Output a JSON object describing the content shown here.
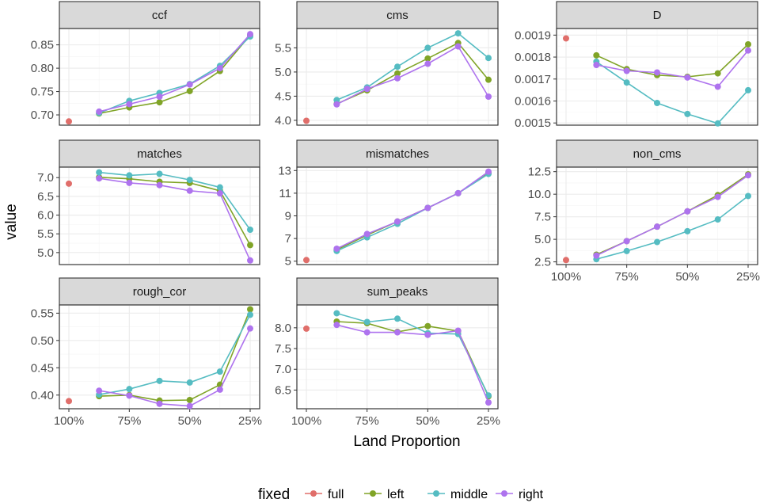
{
  "chart_data": {
    "type": "line",
    "xlabel": "Land Proportion",
    "ylabel": "value",
    "x_categories": [
      "100%",
      "87.5%",
      "75%",
      "62.5%",
      "50%",
      "37.5%",
      "25%"
    ],
    "x_tick_labels": [
      "100%",
      "75%",
      "50%",
      "25%"
    ],
    "legend": {
      "title": "fixed",
      "entries": [
        {
          "name": "full",
          "color": "#E06E6A"
        },
        {
          "name": "left",
          "color": "#80A427"
        },
        {
          "name": "middle",
          "color": "#55BCC2"
        },
        {
          "name": "right",
          "color": "#AE73EE"
        }
      ]
    },
    "panels": [
      {
        "title": "ccf",
        "ylim": [
          0.678,
          0.885
        ],
        "yticks": [
          0.7,
          0.75,
          0.8,
          0.85
        ],
        "ytick_labels": [
          "0.70",
          "0.75",
          "0.80",
          "0.85"
        ],
        "series": [
          {
            "name": "full",
            "values": [
              0.686,
              null,
              null,
              null,
              null,
              null,
              null
            ]
          },
          {
            "name": "left",
            "values": [
              null,
              0.703,
              0.716,
              0.727,
              0.751,
              0.794,
              0.871
            ]
          },
          {
            "name": "middle",
            "values": [
              null,
              0.704,
              0.73,
              0.747,
              0.766,
              0.805,
              0.868
            ]
          },
          {
            "name": "right",
            "values": [
              null,
              0.707,
              0.723,
              0.739,
              0.765,
              0.8,
              0.873
            ]
          }
        ]
      },
      {
        "title": "cms",
        "ylim": [
          3.9,
          5.9
        ],
        "yticks": [
          4.0,
          4.5,
          5.0,
          5.5
        ],
        "ytick_labels": [
          "4.0",
          "4.5",
          "5.0",
          "5.5"
        ],
        "series": [
          {
            "name": "full",
            "values": [
              3.99,
              null,
              null,
              null,
              null,
              null,
              null
            ]
          },
          {
            "name": "left",
            "values": [
              null,
              4.34,
              4.62,
              4.97,
              5.28,
              5.6,
              4.84
            ]
          },
          {
            "name": "middle",
            "values": [
              null,
              4.42,
              4.68,
              5.11,
              5.5,
              5.8,
              5.29
            ]
          },
          {
            "name": "right",
            "values": [
              null,
              4.33,
              4.65,
              4.87,
              5.17,
              5.53,
              4.49
            ]
          }
        ]
      },
      {
        "title": "D",
        "ylim": [
          0.00149,
          0.00193
        ],
        "yticks": [
          0.0015,
          0.0016,
          0.0017,
          0.0018,
          0.0019
        ],
        "ytick_labels": [
          "0.0015",
          "0.0016",
          "0.0017",
          "0.0018",
          "0.0019"
        ],
        "series": [
          {
            "name": "full",
            "values": [
              0.001885,
              null,
              null,
              null,
              null,
              null,
              null
            ]
          },
          {
            "name": "left",
            "values": [
              null,
              0.001808,
              0.001745,
              0.001718,
              0.00171,
              0.001726,
              0.001858
            ]
          },
          {
            "name": "middle",
            "values": [
              null,
              0.001779,
              0.001684,
              0.001591,
              0.001541,
              0.001498,
              0.001649
            ]
          },
          {
            "name": "right",
            "values": [
              null,
              0.001764,
              0.001737,
              0.00173,
              0.001707,
              0.001665,
              0.00183
            ]
          }
        ]
      },
      {
        "title": "matches",
        "ylim": [
          4.68,
          7.28
        ],
        "yticks": [
          5.0,
          5.5,
          6.0,
          6.5,
          7.0
        ],
        "ytick_labels": [
          "5.0",
          "5.5",
          "6.0",
          "6.5",
          "7.0"
        ],
        "series": [
          {
            "name": "full",
            "values": [
              6.84,
              null,
              null,
              null,
              null,
              null,
              null
            ]
          },
          {
            "name": "left",
            "values": [
              null,
              7.01,
              6.97,
              6.89,
              6.86,
              6.65,
              5.2
            ]
          },
          {
            "name": "middle",
            "values": [
              null,
              7.14,
              7.06,
              7.1,
              6.94,
              6.74,
              5.61
            ]
          },
          {
            "name": "right",
            "values": [
              null,
              6.98,
              6.86,
              6.8,
              6.65,
              6.58,
              4.79
            ]
          }
        ]
      },
      {
        "title": "mismatches",
        "ylim": [
          4.7,
          13.3
        ],
        "yticks": [
          5,
          7,
          9,
          11,
          13
        ],
        "ytick_labels": [
          "5",
          "7",
          "9",
          "11",
          "13"
        ],
        "series": [
          {
            "name": "full",
            "values": [
              5.1,
              null,
              null,
              null,
              null,
              null,
              null
            ]
          },
          {
            "name": "left",
            "values": [
              null,
              6.0,
              7.3,
              8.5,
              9.7,
              11.0,
              12.8
            ]
          },
          {
            "name": "middle",
            "values": [
              null,
              5.9,
              7.1,
              8.3,
              9.7,
              11.0,
              12.7
            ]
          },
          {
            "name": "right",
            "values": [
              null,
              6.1,
              7.4,
              8.5,
              9.7,
              11.0,
              12.9
            ]
          }
        ]
      },
      {
        "title": "non_cms",
        "ylim": [
          2.2,
          13.0
        ],
        "yticks": [
          2.5,
          5.0,
          7.5,
          10.0,
          12.5
        ],
        "ytick_labels": [
          "2.5",
          "5.0",
          "7.5",
          "10.0",
          "12.5"
        ],
        "series": [
          {
            "name": "full",
            "values": [
              2.7,
              null,
              null,
              null,
              null,
              null,
              null
            ]
          },
          {
            "name": "left",
            "values": [
              null,
              3.3,
              4.8,
              6.4,
              8.1,
              9.9,
              12.2
            ]
          },
          {
            "name": "middle",
            "values": [
              null,
              2.8,
              3.7,
              4.7,
              5.9,
              7.2,
              9.8
            ]
          },
          {
            "name": "right",
            "values": [
              null,
              3.2,
              4.8,
              6.4,
              8.1,
              9.7,
              12.1
            ]
          }
        ]
      },
      {
        "title": "rough_cor",
        "ylim": [
          0.375,
          0.565
        ],
        "yticks": [
          0.4,
          0.45,
          0.5,
          0.55
        ],
        "ytick_labels": [
          "0.40",
          "0.45",
          "0.50",
          "0.55"
        ],
        "series": [
          {
            "name": "full",
            "values": [
              0.389,
              null,
              null,
              null,
              null,
              null,
              null
            ]
          },
          {
            "name": "left",
            "values": [
              null,
              0.398,
              0.4,
              0.39,
              0.391,
              0.419,
              0.557
            ]
          },
          {
            "name": "middle",
            "values": [
              null,
              0.401,
              0.411,
              0.426,
              0.423,
              0.443,
              0.547
            ]
          },
          {
            "name": "right",
            "values": [
              null,
              0.408,
              0.399,
              0.384,
              0.38,
              0.41,
              0.522
            ]
          }
        ]
      },
      {
        "title": "sum_peaks",
        "ylim": [
          6.05,
          8.55
        ],
        "yticks": [
          6.5,
          7.0,
          7.5,
          8.0
        ],
        "ytick_labels": [
          "6.5",
          "7.0",
          "7.5",
          "8.0"
        ],
        "series": [
          {
            "name": "full",
            "values": [
              7.98,
              null,
              null,
              null,
              null,
              null,
              null
            ]
          },
          {
            "name": "left",
            "values": [
              null,
              8.15,
              8.11,
              7.9,
              8.04,
              7.92,
              6.35
            ]
          },
          {
            "name": "middle",
            "values": [
              null,
              8.35,
              8.14,
              8.22,
              7.87,
              7.85,
              6.37
            ]
          },
          {
            "name": "right",
            "values": [
              null,
              8.07,
              7.89,
              7.89,
              7.83,
              7.93,
              6.2
            ]
          }
        ]
      }
    ]
  }
}
